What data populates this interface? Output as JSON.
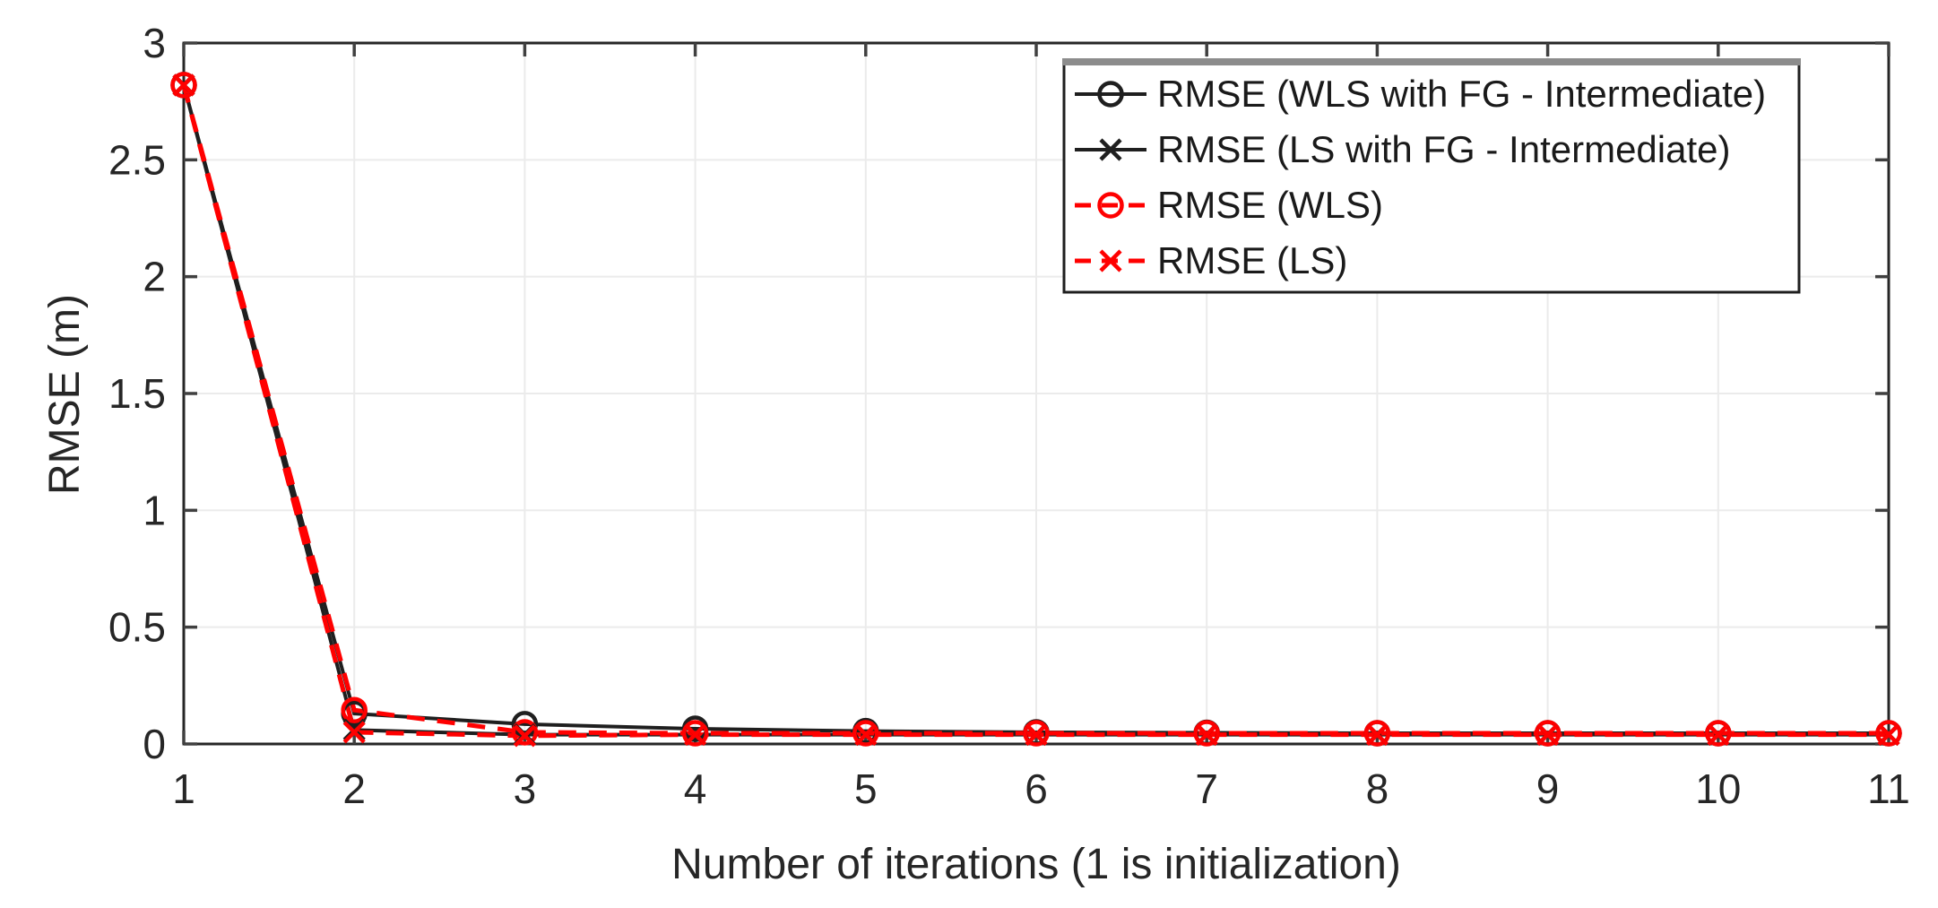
{
  "chart_data": {
    "type": "line",
    "xlabel": "Number of iterations (1 is initialization)",
    "ylabel": "RMSE (m)",
    "xlim": [
      1,
      11
    ],
    "ylim": [
      0,
      3
    ],
    "xticks": [
      1,
      2,
      3,
      4,
      5,
      6,
      7,
      8,
      9,
      10,
      11
    ],
    "xtick_labels": [
      "1",
      "2",
      "3",
      "4",
      "5",
      "6",
      "7",
      "8",
      "9",
      "10",
      "11"
    ],
    "yticks": [
      0,
      0.5,
      1,
      1.5,
      2,
      2.5,
      3
    ],
    "ytick_labels": [
      "0",
      "0.5",
      "1",
      "1.5",
      "2",
      "2.5",
      "3"
    ],
    "grid": true,
    "legend_position": "top-right",
    "x": [
      1,
      2,
      3,
      4,
      5,
      6,
      7,
      8,
      9,
      10,
      11
    ],
    "series": [
      {
        "name": "RMSE (WLS with FG - Intermediate)",
        "color": "#1f1f1f",
        "line_style": "solid",
        "marker": "circle",
        "values": [
          2.82,
          0.13,
          0.085,
          0.065,
          0.055,
          0.05,
          0.048,
          0.046,
          0.046,
          0.046,
          0.046
        ]
      },
      {
        "name": "RMSE (LS with FG - Intermediate)",
        "color": "#1f1f1f",
        "line_style": "solid",
        "marker": "x",
        "values": [
          2.82,
          0.06,
          0.04,
          0.04,
          0.04,
          0.04,
          0.04,
          0.04,
          0.04,
          0.04,
          0.04
        ]
      },
      {
        "name": "RMSE (WLS)",
        "color": "#ff0000",
        "line_style": "dashed",
        "marker": "circle",
        "values": [
          2.82,
          0.145,
          0.05,
          0.046,
          0.046,
          0.046,
          0.046,
          0.046,
          0.046,
          0.046,
          0.046
        ]
      },
      {
        "name": "RMSE (LS)",
        "color": "#ff0000",
        "line_style": "dashed",
        "marker": "x",
        "values": [
          2.82,
          0.05,
          0.035,
          0.04,
          0.04,
          0.04,
          0.04,
          0.04,
          0.04,
          0.04,
          0.04
        ]
      }
    ]
  },
  "colors": {
    "background": "#ffffff",
    "grid": "#ebebeb",
    "axis": "#262626",
    "tick": "#404040",
    "tick_text": "#262626",
    "series_black": "#1f1f1f",
    "series_red": "#ff0000",
    "legend_border": "#1f1f1f",
    "legend_fill": "#ffffff",
    "legend_shadow": "#8c8c8c"
  }
}
